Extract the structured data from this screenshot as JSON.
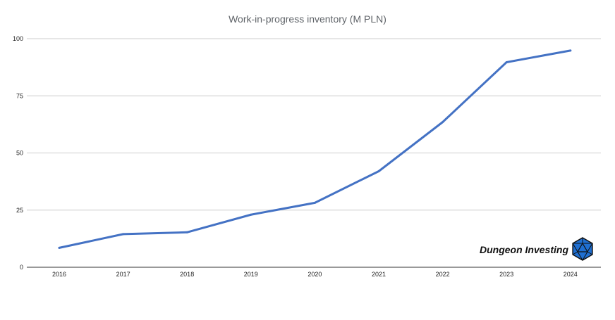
{
  "chart_data": {
    "type": "line",
    "title": "Work-in-progress inventory (M PLN)",
    "xlabel": "",
    "ylabel": "",
    "x": [
      "2016",
      "2017",
      "2018",
      "2019",
      "2020",
      "2021",
      "2022",
      "2023",
      "2024"
    ],
    "series": [
      {
        "values": [
          8.5,
          14.5,
          15.3,
          23.0,
          28.2,
          42.0,
          63.5,
          89.7,
          94.8
        ]
      }
    ],
    "ylim": [
      0,
      100
    ],
    "yticks": [
      0,
      25,
      50,
      75,
      100
    ],
    "grid": true,
    "legend": "none",
    "colors": {
      "series": "#4472c4",
      "grid": "#cccccc",
      "axis": "#333333"
    }
  },
  "watermark": {
    "text": "Dungeon Investing",
    "icon": "d20-dice-icon",
    "icon_color": "#1f6fd1"
  }
}
